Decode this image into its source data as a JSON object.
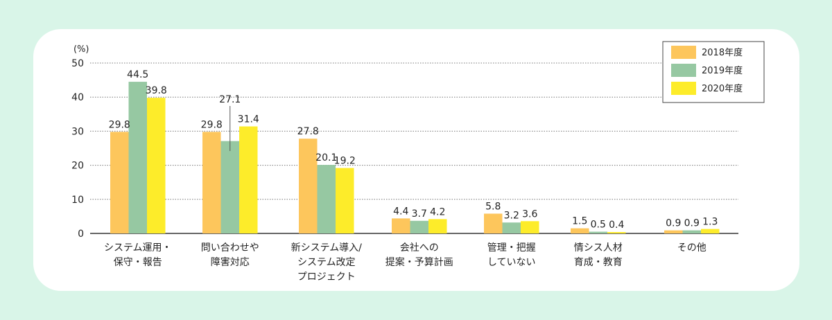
{
  "chart_data": {
    "type": "bar",
    "unit": "(%)",
    "ylim": [
      0,
      50
    ],
    "yticks": [
      0,
      10,
      20,
      30,
      40,
      50
    ],
    "grid": true,
    "legend_position": "top-right",
    "categories": [
      [
        "システム運用・",
        "保守・報告"
      ],
      [
        "問い合わせや",
        "障害対応"
      ],
      [
        "新システム導入/",
        "システム改定",
        "プロジェクト"
      ],
      [
        "会社への",
        "提案・予算計画"
      ],
      [
        "管理・把握",
        "していない"
      ],
      [
        "情シス人材",
        "育成・教育"
      ],
      [
        "その他"
      ]
    ],
    "series": [
      {
        "name": "2018年度",
        "color": "#fdc65c",
        "values": [
          29.8,
          29.8,
          27.8,
          4.4,
          5.8,
          1.5,
          0.9
        ]
      },
      {
        "name": "2019年度",
        "color": "#96c8a2",
        "values": [
          44.5,
          27.1,
          20.1,
          3.7,
          3.2,
          0.5,
          0.9
        ]
      },
      {
        "name": "2020年度",
        "color": "#fdec2a",
        "values": [
          39.8,
          31.4,
          19.2,
          4.2,
          3.6,
          0.4,
          1.3
        ]
      }
    ]
  }
}
